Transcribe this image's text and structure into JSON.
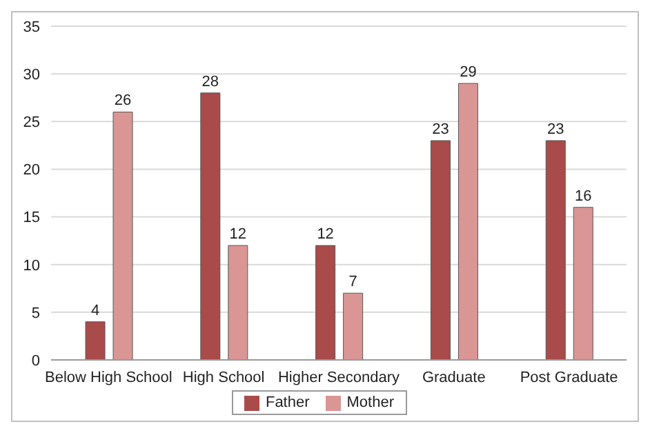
{
  "chart_data": {
    "type": "bar",
    "categories": [
      "Below High School",
      "High School",
      "Higher Secondary",
      "Graduate",
      "Post Graduate"
    ],
    "series": [
      {
        "name": "Father",
        "color": "#a84b4a",
        "values": [
          4,
          28,
          12,
          23,
          23
        ]
      },
      {
        "name": "Mother",
        "color": "#d99695",
        "values": [
          26,
          12,
          7,
          29,
          16
        ]
      }
    ],
    "ylim": [
      0,
      35
    ],
    "yticks": [
      0,
      5,
      10,
      15,
      20,
      25,
      30,
      35
    ],
    "grid": "y",
    "legend": "bottom",
    "data_labels": true
  }
}
